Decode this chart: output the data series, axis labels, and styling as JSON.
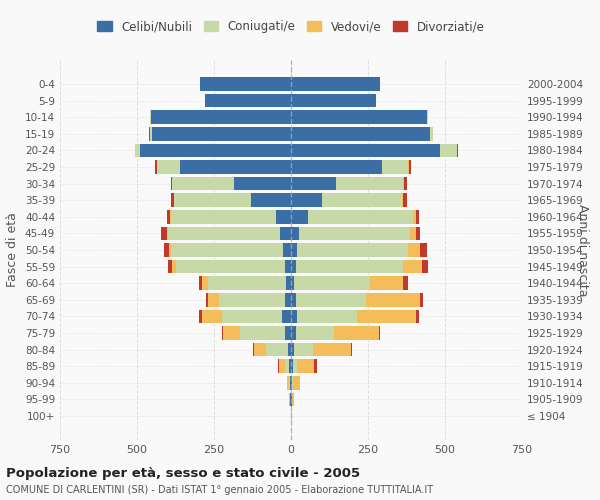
{
  "age_groups": [
    "100+",
    "95-99",
    "90-94",
    "85-89",
    "80-84",
    "75-79",
    "70-74",
    "65-69",
    "60-64",
    "55-59",
    "50-54",
    "45-49",
    "40-44",
    "35-39",
    "30-34",
    "25-29",
    "20-24",
    "15-19",
    "10-14",
    "5-9",
    "0-4"
  ],
  "birth_years": [
    "≤ 1904",
    "1905-1909",
    "1910-1914",
    "1915-1919",
    "1920-1924",
    "1925-1929",
    "1930-1934",
    "1935-1939",
    "1940-1944",
    "1945-1949",
    "1950-1954",
    "1955-1959",
    "1960-1964",
    "1965-1969",
    "1970-1974",
    "1975-1979",
    "1980-1984",
    "1985-1989",
    "1990-1994",
    "1995-1999",
    "2000-2004"
  ],
  "maschi_celibe": [
    0,
    2,
    3,
    5,
    10,
    20,
    30,
    20,
    15,
    20,
    25,
    35,
    50,
    130,
    185,
    360,
    490,
    450,
    455,
    280,
    295
  ],
  "maschi_coniugato": [
    0,
    2,
    5,
    15,
    70,
    145,
    195,
    215,
    255,
    355,
    365,
    365,
    340,
    250,
    200,
    75,
    15,
    8,
    3,
    0,
    0
  ],
  "maschi_vedovo": [
    0,
    2,
    5,
    20,
    40,
    55,
    65,
    35,
    20,
    10,
    5,
    3,
    2,
    0,
    0,
    0,
    0,
    0,
    0,
    0,
    0
  ],
  "maschi_divorziato": [
    0,
    0,
    0,
    2,
    3,
    4,
    8,
    5,
    10,
    15,
    18,
    18,
    10,
    8,
    5,
    5,
    2,
    2,
    0,
    0,
    0
  ],
  "femmine_celibe": [
    0,
    2,
    3,
    5,
    10,
    15,
    20,
    15,
    10,
    15,
    20,
    25,
    55,
    100,
    145,
    295,
    485,
    450,
    440,
    275,
    290
  ],
  "femmine_coniugato": [
    0,
    2,
    5,
    15,
    60,
    125,
    195,
    230,
    245,
    350,
    360,
    360,
    340,
    260,
    220,
    85,
    55,
    10,
    5,
    0,
    0
  ],
  "femmine_vedovo": [
    2,
    5,
    20,
    55,
    125,
    145,
    190,
    175,
    110,
    60,
    40,
    20,
    10,
    5,
    2,
    2,
    0,
    0,
    0,
    0,
    0
  ],
  "femmine_divorziato": [
    0,
    0,
    2,
    8,
    3,
    5,
    12,
    10,
    15,
    20,
    20,
    15,
    12,
    10,
    10,
    8,
    2,
    0,
    0,
    0,
    0
  ],
  "colors": {
    "celibe": "#3a6ea5",
    "coniugato": "#c8d9a8",
    "vedovo": "#f5bc5a",
    "divorziato": "#c0392b"
  },
  "title": "Popolazione per età, sesso e stato civile - 2005",
  "subtitle": "COMUNE DI CARLENTINI (SR) - Dati ISTAT 1° gennaio 2005 - Elaborazione TUTTITALIA.IT",
  "xlim": 750,
  "bg_color": "#f9f9f9",
  "grid_color": "#dddddd"
}
